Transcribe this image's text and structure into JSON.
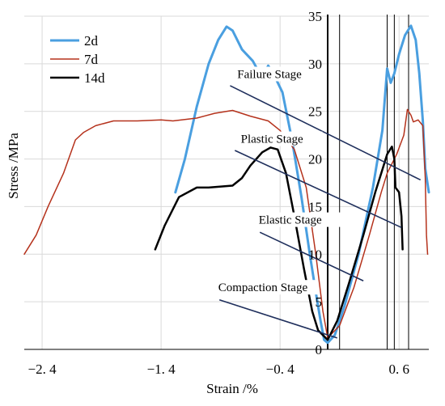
{
  "chart_data": {
    "type": "line",
    "xlabel": "Strain /%",
    "ylabel": "Stress /MPa",
    "xlim": [
      -2.55,
      0.85
    ],
    "ylim": [
      0,
      35
    ],
    "grid": true,
    "legend_placement": "top-left",
    "x_ticks": [
      -2.4,
      -1.4,
      -0.4,
      0.6
    ],
    "x_tick_labels": [
      "−2. 4",
      "−1. 4",
      "−0. 4",
      "0. 6"
    ],
    "y_ticks": [
      0,
      5,
      10,
      15,
      20,
      25,
      30,
      35
    ],
    "y_tick_labels": [
      "0",
      "5",
      "10",
      "15",
      "20",
      "25",
      "30",
      "35"
    ],
    "series": [
      {
        "name": "2d",
        "color": "#4a9fe0",
        "width": 3,
        "points": [
          [
            -1.28,
            16.5
          ],
          [
            -1.2,
            20
          ],
          [
            -1.1,
            25.5
          ],
          [
            -1.0,
            30
          ],
          [
            -0.92,
            32.5
          ],
          [
            -0.85,
            33.9
          ],
          [
            -0.8,
            33.5
          ],
          [
            -0.72,
            31.5
          ],
          [
            -0.63,
            30.3
          ],
          [
            -0.55,
            28.5
          ],
          [
            -0.5,
            29.8
          ],
          [
            -0.45,
            28.8
          ],
          [
            -0.38,
            27
          ],
          [
            -0.3,
            22
          ],
          [
            -0.22,
            16
          ],
          [
            -0.15,
            10
          ],
          [
            -0.1,
            6
          ],
          [
            -0.06,
            3
          ],
          [
            -0.03,
            1
          ],
          [
            0.0,
            0.7
          ],
          [
            0.06,
            1.5
          ],
          [
            0.14,
            4.5
          ],
          [
            0.26,
            10
          ],
          [
            0.38,
            17
          ],
          [
            0.46,
            23
          ],
          [
            0.5,
            29.5
          ],
          [
            0.53,
            28
          ],
          [
            0.56,
            29
          ],
          [
            0.6,
            31
          ],
          [
            0.65,
            33
          ],
          [
            0.7,
            34
          ],
          [
            0.74,
            32.5
          ],
          [
            0.77,
            29
          ],
          [
            0.8,
            24
          ],
          [
            0.82,
            19
          ],
          [
            0.85,
            16.5
          ]
        ]
      },
      {
        "name": "7d",
        "color": "#b5321c",
        "width": 1.5,
        "points": [
          [
            -2.55,
            10
          ],
          [
            -2.45,
            12
          ],
          [
            -2.35,
            15
          ],
          [
            -2.22,
            18.5
          ],
          [
            -2.12,
            22
          ],
          [
            -2.05,
            22.8
          ],
          [
            -1.95,
            23.5
          ],
          [
            -1.8,
            24
          ],
          [
            -1.6,
            24
          ],
          [
            -1.4,
            24.1
          ],
          [
            -1.3,
            24
          ],
          [
            -1.1,
            24.3
          ],
          [
            -0.95,
            24.8
          ],
          [
            -0.8,
            25.1
          ],
          [
            -0.65,
            24.5
          ],
          [
            -0.5,
            24
          ],
          [
            -0.4,
            23
          ],
          [
            -0.28,
            21
          ],
          [
            -0.18,
            17
          ],
          [
            -0.1,
            10
          ],
          [
            -0.04,
            4
          ],
          [
            0.0,
            1.2
          ],
          [
            0.1,
            2.5
          ],
          [
            0.22,
            6.5
          ],
          [
            0.35,
            12
          ],
          [
            0.45,
            16.5
          ],
          [
            0.5,
            18.5
          ],
          [
            0.58,
            20.5
          ],
          [
            0.64,
            22.5
          ],
          [
            0.67,
            25.2
          ],
          [
            0.7,
            24.6
          ],
          [
            0.72,
            23.9
          ],
          [
            0.76,
            24.1
          ],
          [
            0.8,
            23.5
          ],
          [
            0.82,
            18
          ],
          [
            0.83,
            12
          ],
          [
            0.84,
            10
          ]
        ]
      },
      {
        "name": "14d",
        "color": "#000000",
        "width": 2.5,
        "points": [
          [
            -1.45,
            10.5
          ],
          [
            -1.37,
            13
          ],
          [
            -1.25,
            16
          ],
          [
            -1.1,
            17
          ],
          [
            -1.0,
            17
          ],
          [
            -0.8,
            17.2
          ],
          [
            -0.72,
            18
          ],
          [
            -0.65,
            19.3
          ],
          [
            -0.55,
            20.7
          ],
          [
            -0.48,
            21.2
          ],
          [
            -0.42,
            21
          ],
          [
            -0.35,
            18.5
          ],
          [
            -0.28,
            14
          ],
          [
            -0.2,
            8.5
          ],
          [
            -0.13,
            4
          ],
          [
            -0.08,
            2
          ],
          [
            -0.04,
            1.5
          ],
          [
            0.0,
            1
          ],
          [
            0.08,
            3
          ],
          [
            0.18,
            7
          ],
          [
            0.3,
            12
          ],
          [
            0.4,
            16.5
          ],
          [
            0.45,
            18.5
          ],
          [
            0.5,
            20.5
          ],
          [
            0.54,
            21.3
          ],
          [
            0.56,
            20
          ],
          [
            0.57,
            17
          ],
          [
            0.6,
            16.5
          ],
          [
            0.62,
            14
          ],
          [
            0.63,
            10.5
          ]
        ]
      }
    ],
    "v_markers": [
      0,
      0.1,
      0.5,
      0.56,
      0.68
    ],
    "annotations": [
      {
        "text": "Failure Stage",
        "label_at": [
          -0.76,
          28.5
        ],
        "from": [
          -0.82,
          27.7
        ],
        "to": [
          0.78,
          17.8
        ]
      },
      {
        "text": "Plastic Stage",
        "label_at": [
          -0.73,
          21.7
        ],
        "from": [
          -0.78,
          20.9
        ],
        "to": [
          0.62,
          12.8
        ]
      },
      {
        "text": "Elastic Stage",
        "label_at": [
          -0.58,
          13.2
        ],
        "from": [
          -0.57,
          12.3
        ],
        "to": [
          0.3,
          7.2
        ]
      },
      {
        "text": "Compaction Stage",
        "label_at": [
          -0.92,
          6.1
        ],
        "from": [
          -0.91,
          5.2
        ],
        "to": [
          0.08,
          1.2
        ]
      }
    ]
  }
}
